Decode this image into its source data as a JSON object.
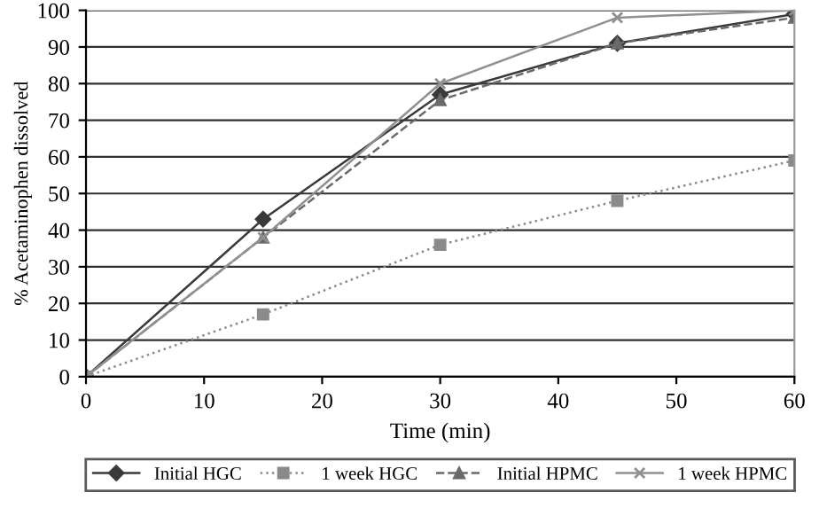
{
  "chart_data": {
    "type": "line",
    "xlabel": "Time (min)",
    "ylabel": "% Acetaminophen dissolved",
    "x": [
      0,
      15,
      30,
      45,
      60
    ],
    "series": [
      {
        "name": "Initial HGC",
        "color": "#3a3a3a",
        "marker": "diamond",
        "line_style": "solid",
        "values": [
          0,
          43,
          77,
          91,
          99
        ]
      },
      {
        "name": "1 week HGC",
        "color": "#8a8a8a",
        "marker": "square",
        "line_style": "dotted",
        "values": [
          0,
          17,
          36,
          48,
          59
        ]
      },
      {
        "name": "Initial HPMC",
        "color": "#6a6a6a",
        "marker": "triangle",
        "line_style": "dashed",
        "values": [
          0,
          38,
          75.5,
          91,
          98
        ]
      },
      {
        "name": "1 week HPMC",
        "color": "#909090",
        "marker": "cross",
        "line_style": "solid",
        "values": [
          0,
          38,
          80,
          98,
          100
        ]
      }
    ],
    "xlim": [
      0,
      60
    ],
    "xticks": [
      0,
      10,
      20,
      30,
      40,
      50,
      60
    ],
    "ylim": [
      0,
      100
    ],
    "yticks": [
      0,
      10,
      20,
      30,
      40,
      50,
      60,
      70,
      80,
      90,
      100
    ],
    "grid": "y",
    "legend": "bottom"
  }
}
